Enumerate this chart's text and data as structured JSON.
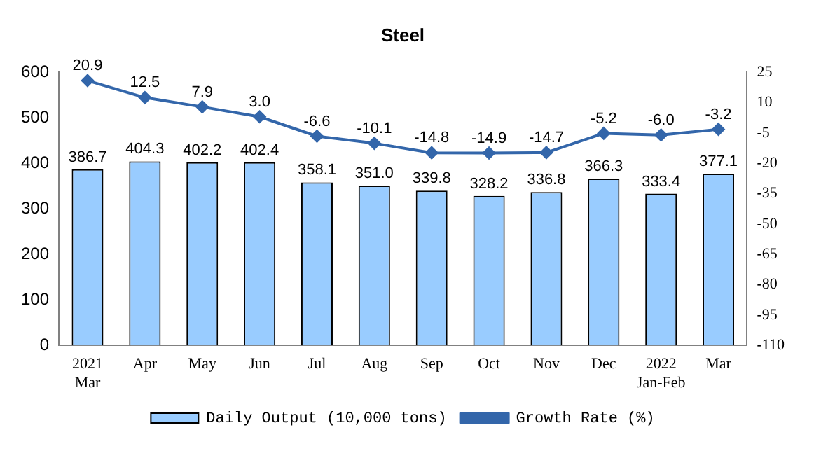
{
  "chart_data": {
    "type": "bar",
    "title": "Steel",
    "categories": [
      "2021\nMar",
      "Apr",
      "May",
      "Jun",
      "Jul",
      "Aug",
      "Sep",
      "Oct",
      "Nov",
      "Dec",
      "2022\nJan-Feb",
      "Mar"
    ],
    "series": [
      {
        "name": "Daily Output (10,000 tons)",
        "color": "#99ccff",
        "values": [
          386.7,
          404.3,
          402.2,
          402.4,
          358.1,
          351.0,
          339.8,
          328.2,
          336.8,
          366.3,
          333.4,
          377.1
        ],
        "value_labels": [
          "386.7",
          "404.3",
          "402.2",
          "402.4",
          "358.1",
          "351.0",
          "339.8",
          "328.2",
          "336.8",
          "366.3",
          "333.4",
          "377.1"
        ]
      },
      {
        "name": "Growth Rate (%)",
        "type": "line",
        "axis": "y2",
        "color": "#3366aa",
        "values": [
          20.9,
          12.5,
          7.9,
          3.0,
          -6.6,
          -10.1,
          -14.8,
          -14.9,
          -14.7,
          -5.2,
          -6.0,
          -3.2
        ],
        "value_labels": [
          "20.9",
          "12.5",
          "7.9",
          "3.0",
          "-6.6",
          "-10.1",
          "-14.8",
          "-14.9",
          "-14.7",
          "-5.2",
          "-6.0",
          "-3.2"
        ]
      }
    ],
    "ylim": [
      0,
      600
    ],
    "yticks": [
      0,
      100,
      200,
      300,
      400,
      500,
      600
    ],
    "y2lim": [
      -110,
      25
    ],
    "y2ticks": [
      -110,
      -95,
      -80,
      -65,
      -50,
      -35,
      -20,
      -5,
      10,
      25
    ],
    "grid": false,
    "legend": "bottom",
    "marker": "diamond"
  }
}
